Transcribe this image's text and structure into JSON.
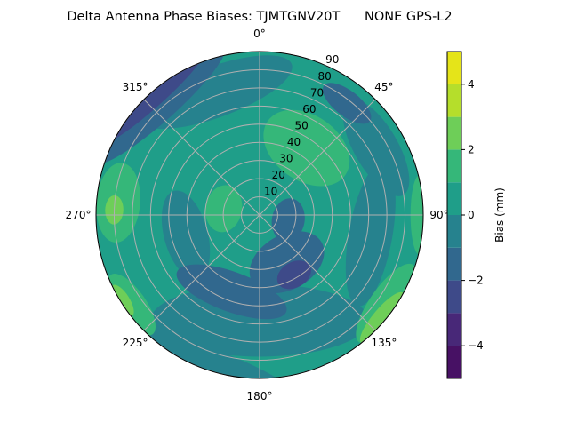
{
  "chart_data": {
    "type": "heatmap",
    "subtype": "polar-contour",
    "title": "Delta Antenna Phase Biases: TJMTGNV20T      NONE GPS-L2",
    "angle_labels": [
      "0°",
      "45°",
      "90°",
      "135°",
      "180°",
      "225°",
      "270°",
      "315°"
    ],
    "angle_values": [
      0,
      45,
      90,
      135,
      180,
      225,
      270,
      315
    ],
    "radial_labels": [
      "10",
      "20",
      "30",
      "40",
      "50",
      "60",
      "70",
      "80",
      "90"
    ],
    "radial_values": [
      10,
      20,
      30,
      40,
      50,
      60,
      70,
      80,
      90
    ],
    "rlim": [
      0,
      90
    ],
    "direction": "clockwise, 0° at top",
    "grid": true,
    "colorbar": {
      "label": "Bias (mm)",
      "range": [
        -5,
        5
      ],
      "tick_labels": [
        "−4",
        "−2",
        "0",
        "2",
        "4"
      ],
      "tick_values": [
        -4,
        -2,
        0,
        2,
        4
      ],
      "levels": [
        -5,
        -4,
        -3,
        -2,
        -1,
        0,
        1,
        2,
        3,
        4,
        5
      ],
      "colors": [
        "#471164",
        "#482878",
        "#3e4a89",
        "#31688e",
        "#26828e",
        "#1f9e89",
        "#35b779",
        "#6ece58",
        "#b5de2b",
        "#e5e419"
      ]
    },
    "base_level": 0.5,
    "regions": [
      {
        "az": 340,
        "zen": 72,
        "a": 45,
        "b": 14,
        "value": -0.5
      },
      {
        "az": 60,
        "zen": 74,
        "a": 30,
        "b": 12,
        "value": -0.5
      },
      {
        "az": 100,
        "zen": 62,
        "a": 40,
        "b": 12,
        "value": -0.5
      },
      {
        "az": 180,
        "zen": 58,
        "a": 60,
        "b": 20,
        "value": -0.5
      },
      {
        "az": 255,
        "zen": 42,
        "a": 25,
        "b": 12,
        "value": -0.5
      },
      {
        "az": 200,
        "zen": 86,
        "a": 50,
        "b": 8,
        "value": -0.5
      },
      {
        "az": 150,
        "zen": 30,
        "a": 22,
        "b": 15,
        "value": -1.5
      },
      {
        "az": 200,
        "zen": 45,
        "a": 32,
        "b": 11,
        "value": -1.5
      },
      {
        "az": 100,
        "zen": 16,
        "a": 12,
        "b": 9,
        "value": -1.5
      },
      {
        "az": 38,
        "zen": 78,
        "a": 16,
        "b": 7,
        "value": -1.5
      },
      {
        "az": 318,
        "zen": 82,
        "a": 48,
        "b": 9,
        "value": -1.5
      },
      {
        "az": 318,
        "zen": 89,
        "a": 42,
        "b": 7,
        "value": -2.5
      },
      {
        "az": 150,
        "zen": 38,
        "a": 10,
        "b": 7,
        "value": -2.5
      },
      {
        "az": 35,
        "zen": 45,
        "a": 26,
        "b": 18,
        "value": 1.5
      },
      {
        "az": 280,
        "zen": 20,
        "a": 13,
        "b": 10,
        "value": 1.5
      },
      {
        "az": 275,
        "zen": 78,
        "a": 22,
        "b": 12,
        "value": 1.5
      },
      {
        "az": 125,
        "zen": 85,
        "a": 26,
        "b": 9,
        "value": 1.5
      },
      {
        "az": 235,
        "zen": 86,
        "a": 20,
        "b": 8,
        "value": 1.5
      },
      {
        "az": 90,
        "zen": 88,
        "a": 22,
        "b": 5,
        "value": 1.5
      },
      {
        "az": 272,
        "zen": 80,
        "a": 8,
        "b": 5,
        "value": 2.5
      },
      {
        "az": 130,
        "zen": 88,
        "a": 18,
        "b": 5,
        "value": 2.5
      },
      {
        "az": 238,
        "zen": 89,
        "a": 10,
        "b": 4,
        "value": 2.5
      }
    ]
  }
}
